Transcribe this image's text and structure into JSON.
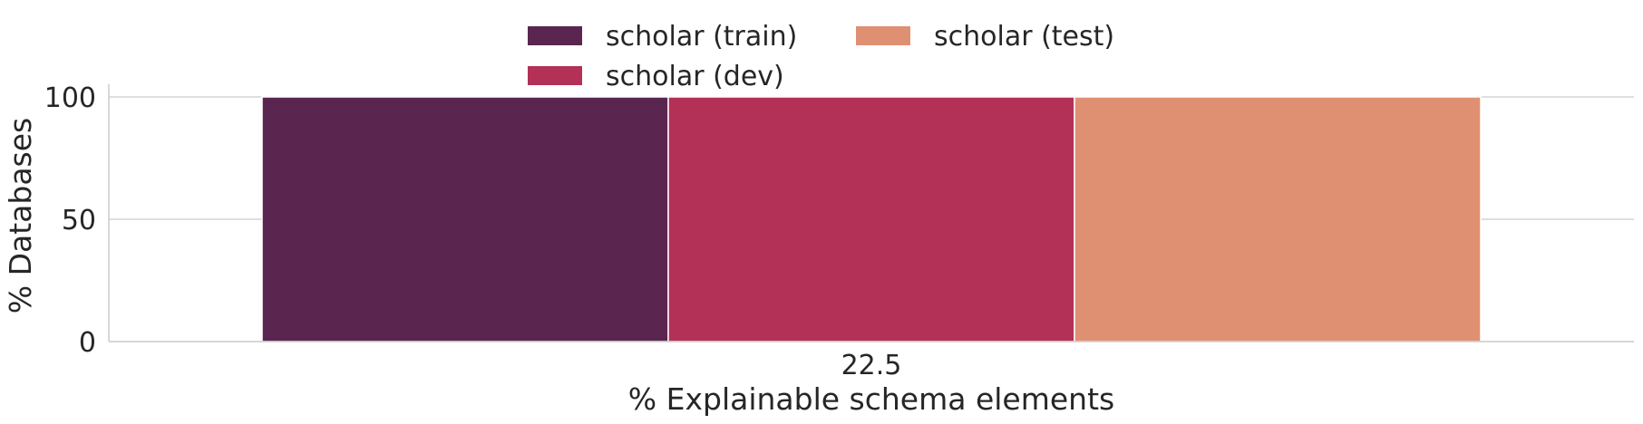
{
  "chart_data": {
    "type": "bar",
    "xlabel": "% Explainable schema elements",
    "ylabel": "% Databases",
    "categories": [
      "22.5"
    ],
    "series": [
      {
        "name": "scholar (train)",
        "color": "#5a2650",
        "values": [
          100
        ]
      },
      {
        "name": "scholar (dev)",
        "color": "#b33157",
        "values": [
          100
        ]
      },
      {
        "name": "scholar (test)",
        "color": "#e09072",
        "values": [
          100
        ]
      }
    ],
    "ylim": [
      0,
      105
    ],
    "yticks": [
      0,
      50,
      100
    ],
    "grid": "horizontal",
    "legend_position": "top-center",
    "legend_columns": 2
  }
}
